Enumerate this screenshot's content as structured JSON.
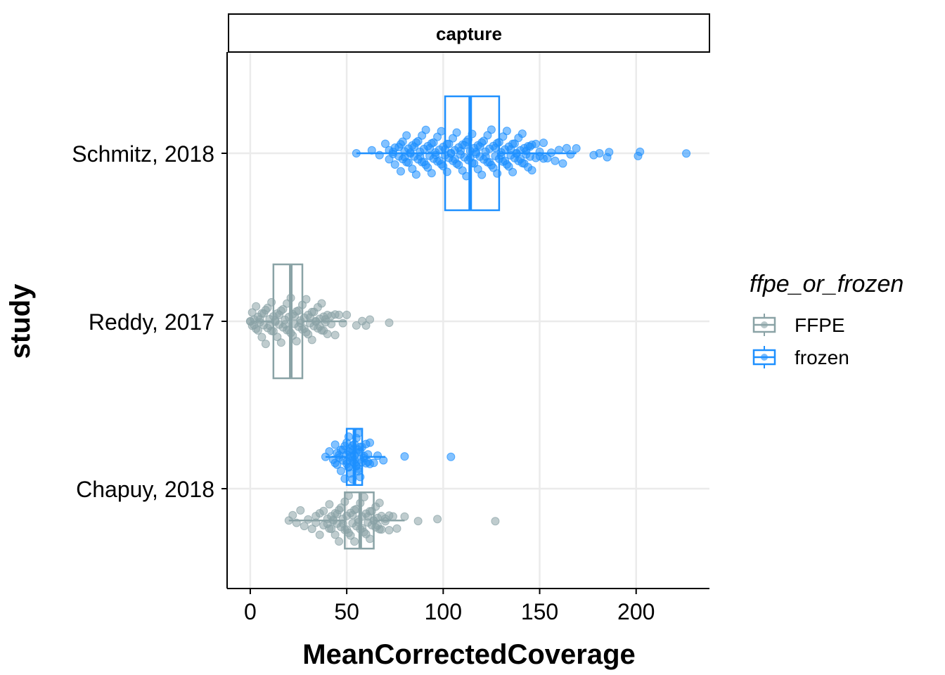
{
  "chart_data": {
    "type": "scatter",
    "subtype": "horizontal boxplot with beeswarm points",
    "facet": "capture",
    "xlabel": "MeanCorrectedCoverage",
    "ylabel": "study",
    "xlim": [
      -12,
      238
    ],
    "x_ticks": [
      "0",
      "50",
      "100",
      "150",
      "200"
    ],
    "categories": [
      "Chapuy, 2018",
      "Reddy, 2017",
      "Schmitz, 2018"
    ],
    "grid": true,
    "legend": {
      "title": "ffpe_or_frozen",
      "position": "right",
      "entries": [
        {
          "label": "FFPE",
          "color": "#8aa3a6"
        },
        {
          "label": "frozen",
          "color": "#1e90ff"
        }
      ]
    },
    "series": [
      {
        "name": "frozen",
        "color": "#1e90ff",
        "boxes": [
          {
            "category": "Schmitz, 2018",
            "offset": 0,
            "q1": 101,
            "median": 114,
            "q3": 129,
            "whisker_low": 55,
            "whisker_high": 169
          },
          {
            "category": "Chapuy, 2018",
            "offset": 0.19,
            "q1": 50,
            "median": 54,
            "q3": 58,
            "whisker_low": 39,
            "whisker_high": 70
          }
        ],
        "points": [
          {
            "category": "Schmitz, 2018",
            "offset": 0,
            "values": [
              55,
              63,
              67,
              70,
              72,
              74,
              75,
              77,
              78,
              79,
              80,
              81,
              82,
              83,
              84,
              85,
              86,
              87,
              88,
              89,
              90,
              91,
              92,
              93,
              94,
              95,
              96,
              97,
              98,
              99,
              100,
              101,
              102,
              103,
              104,
              105,
              106,
              107,
              108,
              109,
              110,
              111,
              112,
              113,
              114,
              115,
              116,
              117,
              118,
              119,
              120,
              121,
              122,
              123,
              124,
              125,
              126,
              127,
              128,
              129,
              130,
              131,
              132,
              133,
              134,
              135,
              136,
              137,
              138,
              139,
              140,
              141,
              142,
              143,
              144,
              145,
              146,
              148,
              150,
              152,
              154,
              156,
              158,
              160,
              162,
              164,
              166,
              169,
              178,
              181,
              185,
              186,
              201,
              202,
              226
            ]
          },
          {
            "category": "Chapuy, 2018",
            "offset": 0.19,
            "values": [
              39,
              41,
              43,
              44,
              45,
              46,
              47,
              48,
              49,
              50,
              50,
              51,
              51,
              52,
              52,
              53,
              53,
              54,
              54,
              55,
              55,
              56,
              56,
              57,
              57,
              58,
              59,
              60,
              61,
              62,
              64,
              66,
              69,
              80,
              104
            ]
          }
        ]
      },
      {
        "name": "FFPE",
        "color": "#8aa3a6",
        "boxes": [
          {
            "category": "Reddy, 2017",
            "offset": 0,
            "q1": 12,
            "median": 21,
            "q3": 27,
            "whisker_low": 0,
            "whisker_high": 50
          },
          {
            "category": "Chapuy, 2018",
            "offset": -0.19,
            "q1": 49,
            "median": 57,
            "q3": 64,
            "whisker_low": 20,
            "whisker_high": 80
          }
        ],
        "points": [
          {
            "category": "Reddy, 2017",
            "offset": 0,
            "values": [
              0,
              1,
              2,
              3,
              4,
              5,
              6,
              7,
              8,
              9,
              10,
              11,
              12,
              13,
              14,
              15,
              16,
              17,
              18,
              19,
              20,
              21,
              22,
              23,
              24,
              25,
              26,
              27,
              28,
              29,
              30,
              31,
              32,
              33,
              34,
              35,
              36,
              37,
              38,
              39,
              40,
              42,
              44,
              46,
              48,
              50,
              55,
              58,
              60,
              62,
              72
            ]
          },
          {
            "category": "Chapuy, 2018",
            "offset": -0.19,
            "values": [
              20,
              22,
              24,
              26,
              28,
              30,
              32,
              34,
              36,
              38,
              40,
              41,
              42,
              43,
              44,
              45,
              46,
              47,
              48,
              49,
              50,
              51,
              52,
              53,
              54,
              55,
              56,
              57,
              58,
              59,
              60,
              61,
              62,
              63,
              64,
              65,
              66,
              67,
              68,
              70,
              72,
              74,
              76,
              80,
              87,
              97,
              127
            ]
          }
        ]
      }
    ]
  }
}
